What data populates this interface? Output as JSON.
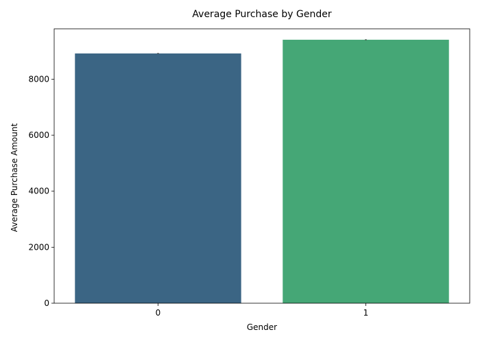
{
  "chart_data": {
    "type": "bar",
    "title": "Average Purchase by Gender",
    "xlabel": "Gender",
    "ylabel": "Average Purchase Amount",
    "categories": [
      "0",
      "1"
    ],
    "values": [
      8920,
      9410
    ],
    "error": [
      15,
      15
    ],
    "colors": [
      "#3b6584",
      "#45a776"
    ],
    "ylim": [
      0,
      9800
    ],
    "yticks": [
      0,
      2000,
      4000,
      6000,
      8000
    ],
    "grid": false,
    "legend": "none"
  }
}
